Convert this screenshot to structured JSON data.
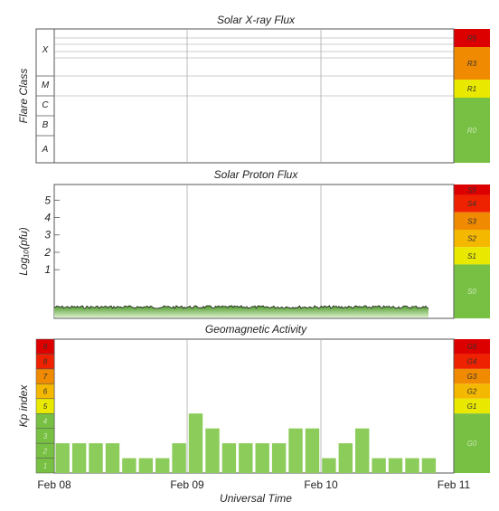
{
  "chart_data": [
    {
      "type": "table",
      "title": "Solar X-ray Flux",
      "ylabel": "Flare Class",
      "y_classes": [
        "X",
        "M",
        "C",
        "B",
        "A"
      ],
      "scale": [
        {
          "label": "R5",
          "color": "#dd0000"
        },
        {
          "label": "R3",
          "color": "#f08a00"
        },
        {
          "label": "R1",
          "color": "#e8e800"
        },
        {
          "label": "R0",
          "color": "#77c043"
        }
      ]
    },
    {
      "type": "area",
      "title": "Solar Proton Flux",
      "ylabel": "Log₁₀(pfu)",
      "y_ticks": [
        "1",
        "2",
        "3",
        "4",
        "5"
      ],
      "ylim": [
        -1.8,
        5.9
      ],
      "x_range": [
        "Feb 08",
        "Feb 11"
      ],
      "series": [
        {
          "x_start_days": 0,
          "x_end_days": 2.81,
          "level": -1.15
        }
      ],
      "scale": [
        {
          "label": "S5",
          "color": "#dd0000"
        },
        {
          "label": "S4",
          "color": "#ee2200"
        },
        {
          "label": "S3",
          "color": "#f08a00"
        },
        {
          "label": "S2",
          "color": "#f5b800"
        },
        {
          "label": "S1",
          "color": "#e8e800"
        },
        {
          "label": "S0",
          "color": "#77c043"
        }
      ]
    },
    {
      "type": "bar",
      "title": "Geomagnetic Activity",
      "ylabel": "Kp index",
      "ylim": [
        0,
        9
      ],
      "kp_levels": [
        "1",
        "2",
        "3",
        "4",
        "5",
        "6",
        "7",
        "8",
        "9"
      ],
      "kp_colors": [
        "#77c043",
        "#77c043",
        "#77c043",
        "#77c043",
        "#e8e800",
        "#f5b800",
        "#f08a00",
        "#ee2200",
        "#dd0000"
      ],
      "interval_hours": 3,
      "values": [
        2,
        2,
        2,
        2,
        1,
        1,
        1,
        2,
        4,
        3,
        2,
        2,
        2,
        2,
        3,
        3,
        1,
        2,
        3,
        1,
        1,
        1,
        1
      ],
      "bar_color": "#8ccc5a",
      "scale": [
        {
          "label": "G5",
          "color": "#dd0000"
        },
        {
          "label": "G4",
          "color": "#ee2200"
        },
        {
          "label": "G3",
          "color": "#f08a00"
        },
        {
          "label": "G2",
          "color": "#f5b800"
        },
        {
          "label": "G1",
          "color": "#e8e800"
        },
        {
          "label": "G0",
          "color": "#77c043"
        }
      ]
    }
  ],
  "x_axis": {
    "ticks": [
      "Feb 08",
      "Feb 09",
      "Feb 10",
      "Feb 11"
    ],
    "label": "Universal Time"
  }
}
